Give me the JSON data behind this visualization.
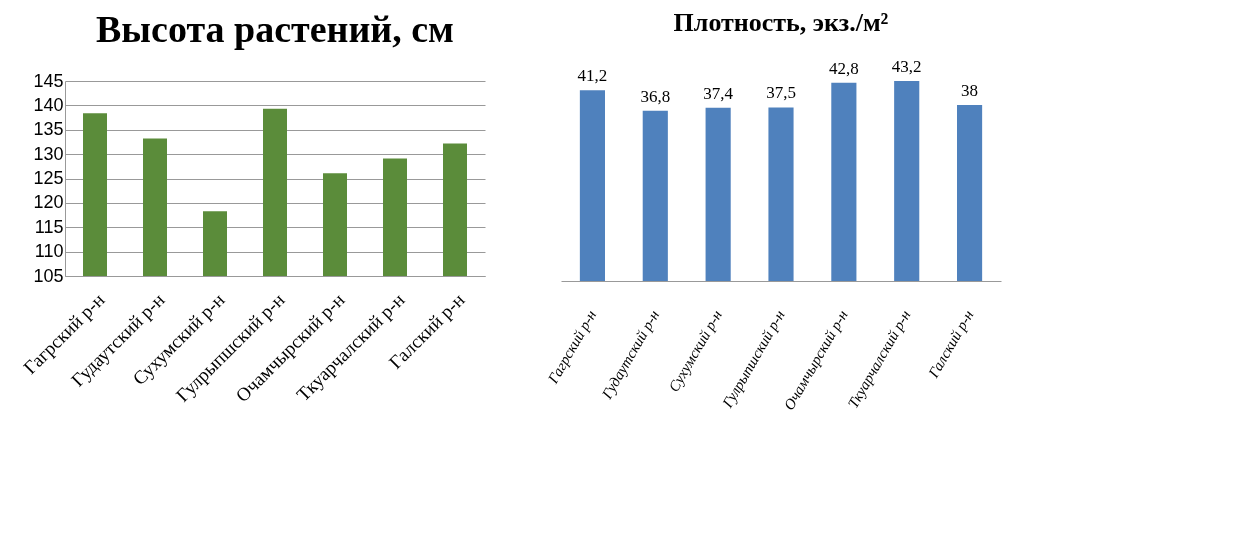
{
  "chart_data": [
    {
      "type": "bar",
      "title": "Высота растений, см",
      "categories": [
        "Гагрский р-н",
        "Гудаутский р-н",
        "Сухумский р-н",
        "Гулрыпшский р-н",
        "Очамчырский р-н",
        "Ткуарчалский р-н",
        "Галский р-н"
      ],
      "values": [
        138.4,
        133.2,
        118.3,
        139.3,
        126.1,
        129.1,
        132.2
      ],
      "color": "#5b8c3a",
      "ylim": [
        105,
        145
      ],
      "yticks": [
        105,
        110,
        115,
        120,
        125,
        130,
        135,
        140,
        145
      ],
      "grid": "y"
    },
    {
      "type": "bar",
      "title": "Плотность, экз./м²",
      "categories": [
        "Гагрский р-н",
        "Гудаутский р-н",
        "Сухумский р-н",
        "Гулрыпшский р-н",
        "Очамчырский р-н",
        "Ткуарчалский р-н",
        "Галский р-н"
      ],
      "values": [
        41.2,
        36.8,
        37.4,
        37.5,
        42.8,
        43.2,
        38
      ],
      "value_labels": [
        "41,2",
        "36,8",
        "37,4",
        "37,5",
        "42,8",
        "43,2",
        "38"
      ],
      "color": "#4f81bd",
      "tick_labels": "x"
    }
  ]
}
